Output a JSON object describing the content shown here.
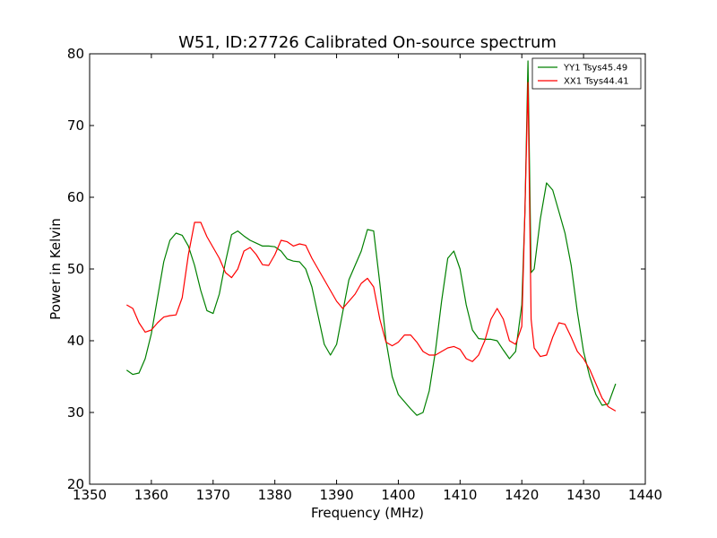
{
  "chart_data": {
    "type": "line",
    "title": "W51, ID:27726 Calibrated On-source spectrum",
    "xlabel": "Frequency (MHz)",
    "ylabel": "Power in Kelvin",
    "xlim": [
      1350,
      1440
    ],
    "ylim": [
      20,
      80
    ],
    "xticks": [
      1350,
      1360,
      1370,
      1380,
      1390,
      1400,
      1410,
      1420,
      1430,
      1440
    ],
    "yticks": [
      20,
      30,
      40,
      50,
      60,
      70,
      80
    ],
    "grid": false,
    "legend_position": "top-right",
    "series": [
      {
        "name": "YY1 Tsys45.49",
        "color": "#008000",
        "x": [
          1356,
          1357,
          1358,
          1359,
          1360,
          1361,
          1362,
          1363,
          1364,
          1365,
          1366,
          1367,
          1368,
          1369,
          1370,
          1371,
          1372,
          1373,
          1374,
          1375,
          1376,
          1377,
          1378,
          1379,
          1380,
          1381,
          1382,
          1383,
          1384,
          1385,
          1386,
          1387,
          1388,
          1389,
          1390,
          1391,
          1392,
          1393,
          1394,
          1395,
          1396,
          1397,
          1398,
          1399,
          1400,
          1401,
          1402,
          1403,
          1404,
          1405,
          1406,
          1407,
          1408,
          1409,
          1410,
          1411,
          1412,
          1413,
          1414,
          1415,
          1416,
          1417,
          1418,
          1419,
          1420,
          1420.5,
          1421,
          1421.5,
          1422,
          1423,
          1424,
          1425,
          1426,
          1427,
          1428,
          1429,
          1430,
          1431,
          1432,
          1433,
          1434,
          1435.2
        ],
        "y": [
          35.9,
          35.3,
          35.5,
          37.5,
          41.0,
          46.0,
          51.0,
          54.0,
          55.0,
          54.7,
          53.2,
          50.5,
          47.0,
          44.2,
          43.8,
          46.5,
          51.0,
          54.8,
          55.3,
          54.6,
          54.0,
          53.6,
          53.2,
          53.2,
          53.1,
          52.5,
          51.4,
          51.1,
          51.0,
          50.0,
          47.5,
          43.5,
          39.5,
          38.0,
          39.5,
          44.0,
          48.5,
          50.5,
          52.5,
          55.5,
          55.3,
          48.0,
          40.0,
          35.0,
          32.5,
          31.5,
          30.5,
          29.6,
          30.0,
          33.0,
          38.5,
          45.5,
          51.5,
          52.5,
          50.0,
          45.0,
          41.5,
          40.3,
          40.2,
          40.2,
          40.0,
          38.7,
          37.5,
          38.5,
          45.0,
          58.0,
          79.0,
          49.5,
          50.0,
          57.0,
          62.0,
          61.0,
          58.0,
          55.0,
          50.5,
          44.0,
          38.5,
          35.0,
          32.5,
          31.0,
          31.2,
          34.0
        ]
      },
      {
        "name": "XX1 Tsys44.41",
        "color": "#ff0000",
        "x": [
          1356,
          1357,
          1358,
          1359,
          1360,
          1361,
          1362,
          1363,
          1364,
          1365,
          1366,
          1367,
          1368,
          1369,
          1370,
          1371,
          1372,
          1373,
          1374,
          1375,
          1376,
          1377,
          1378,
          1379,
          1380,
          1381,
          1382,
          1383,
          1384,
          1385,
          1386,
          1387,
          1388,
          1389,
          1390,
          1391,
          1392,
          1393,
          1394,
          1395,
          1396,
          1397,
          1398,
          1399,
          1400,
          1401,
          1402,
          1403,
          1404,
          1405,
          1406,
          1407,
          1408,
          1409,
          1410,
          1411,
          1412,
          1413,
          1414,
          1415,
          1416,
          1417,
          1418,
          1419,
          1420,
          1420.5,
          1421,
          1421.5,
          1422,
          1423,
          1424,
          1425,
          1426,
          1427,
          1428,
          1429,
          1430,
          1431,
          1432,
          1433,
          1434,
          1435.2
        ],
        "y": [
          45.0,
          44.5,
          42.5,
          41.2,
          41.5,
          42.5,
          43.3,
          43.5,
          43.6,
          46.0,
          52.0,
          56.5,
          56.5,
          54.5,
          53.0,
          51.5,
          49.5,
          48.8,
          50.0,
          52.5,
          53.0,
          52.0,
          50.6,
          50.5,
          52.0,
          54.0,
          53.8,
          53.2,
          53.5,
          53.3,
          51.5,
          50.0,
          48.5,
          47.0,
          45.5,
          44.5,
          45.5,
          46.5,
          48.0,
          48.7,
          47.5,
          43.0,
          39.8,
          39.3,
          39.8,
          40.8,
          40.8,
          39.8,
          38.5,
          38.0,
          38.0,
          38.5,
          39.0,
          39.2,
          38.8,
          37.5,
          37.1,
          38.0,
          40.0,
          43.0,
          44.5,
          43.0,
          40.0,
          39.5,
          42.0,
          58.0,
          76.0,
          43.0,
          39.0,
          37.8,
          38.0,
          40.5,
          42.5,
          42.3,
          40.5,
          38.5,
          37.5,
          36.0,
          34.0,
          32.0,
          30.8,
          30.2
        ]
      }
    ]
  }
}
